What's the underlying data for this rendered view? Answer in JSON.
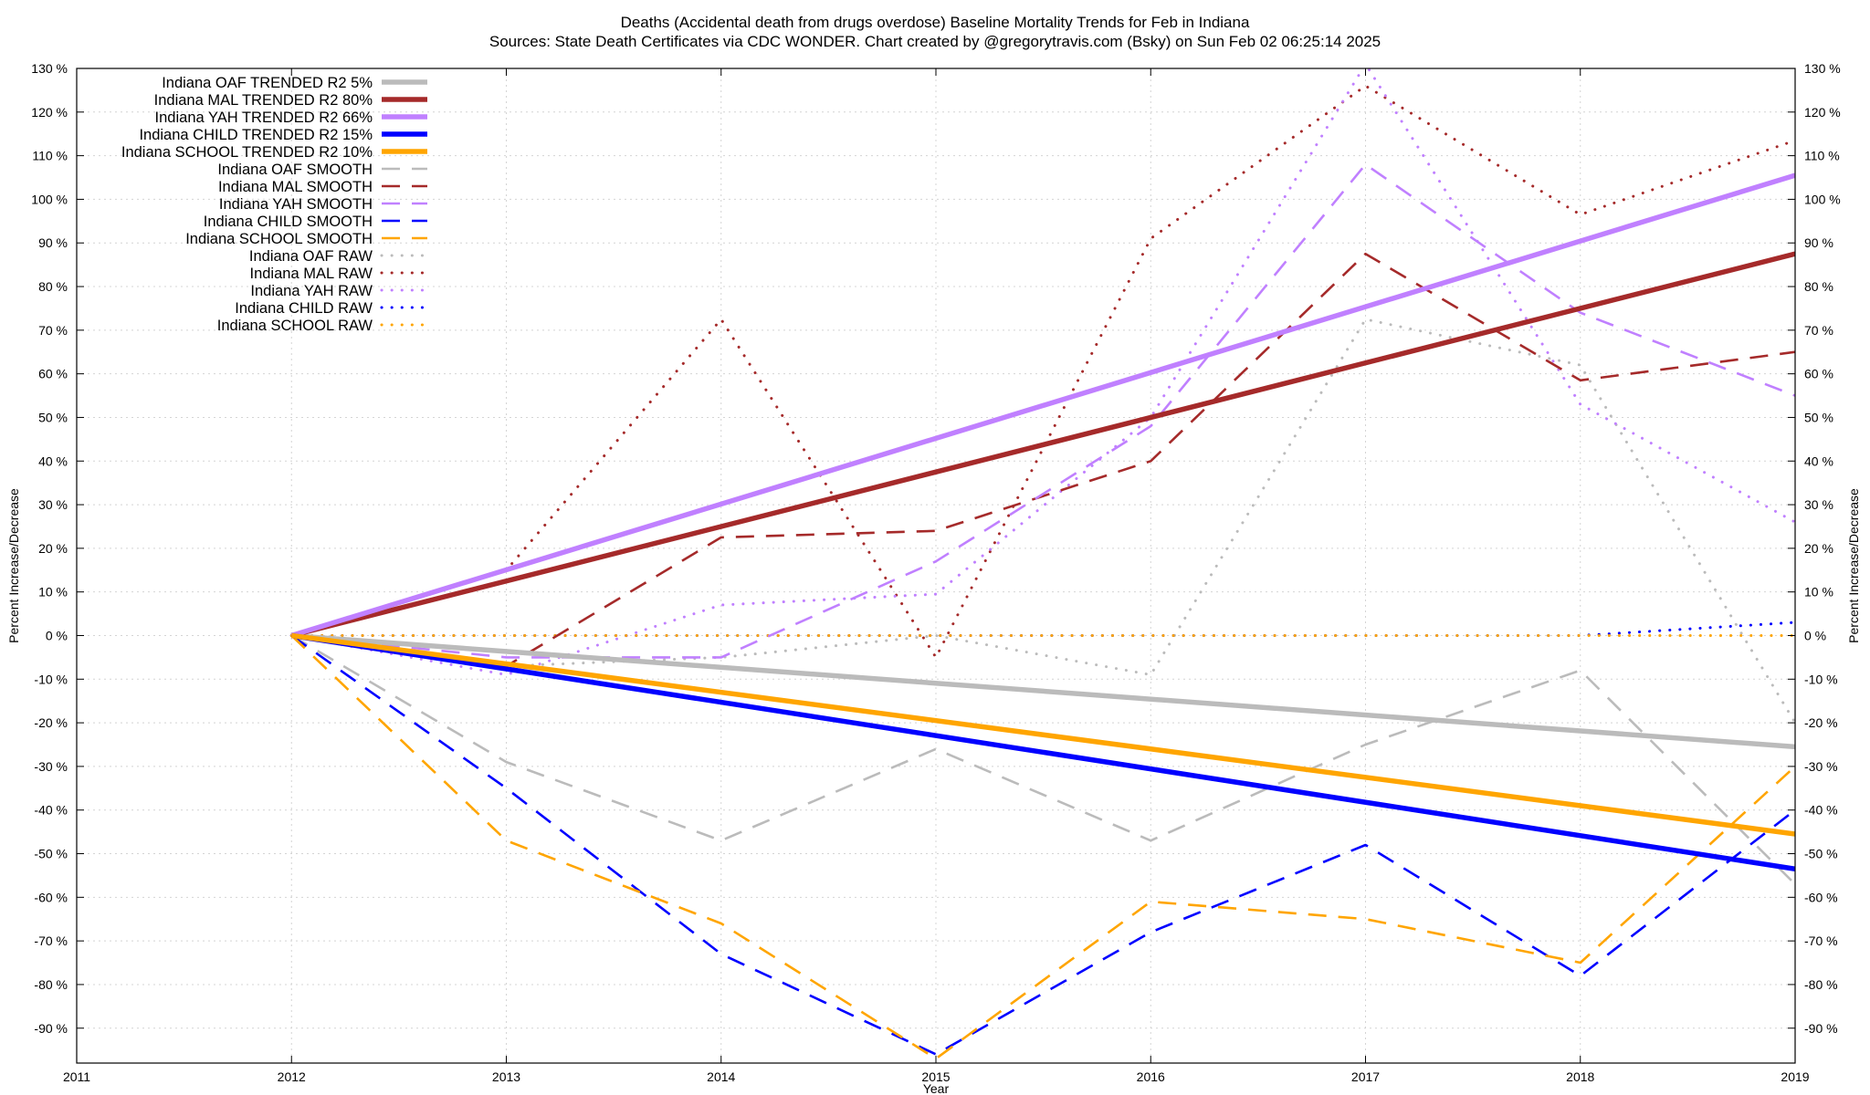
{
  "chart_data": {
    "type": "line",
    "title_line1": "Deaths (Accidental death from drugs overdose)  Baseline Mortality Trends for Feb in Indiana",
    "title_line2": "Sources: State Death Certificates via CDC WONDER.              Chart created by @gregorytravis.com (Bsky) on Sun Feb 02 06:25:14 2025",
    "xlabel": "Year",
    "ylabel_left": "Percent Increase/Decrease",
    "ylabel_right": "Percent Increase/Decrease",
    "xlim": [
      2011,
      2019
    ],
    "ylim": [
      -98,
      130
    ],
    "x_ticks": [
      2011,
      2012,
      2013,
      2014,
      2015,
      2016,
      2017,
      2018,
      2019
    ],
    "x_tick_labels": [
      "2011",
      "2012",
      "2013",
      "2014",
      "2015",
      "2016",
      "2017",
      "2018",
      "2019"
    ],
    "y_ticks": [
      130,
      120,
      110,
      100,
      90,
      80,
      70,
      60,
      50,
      40,
      30,
      20,
      10,
      0,
      -10,
      -20,
      -30,
      -40,
      -50,
      -60,
      -70,
      -80,
      -90
    ],
    "y_tick_labels": [
      "130 %",
      "120 %",
      "110 %",
      "100 %",
      "90 %",
      "80 %",
      "70 %",
      "60 %",
      "50 %",
      "40 %",
      "30 %",
      "20 %",
      "10 %",
      "0 %",
      "-10 %",
      "-20 %",
      "-30 %",
      "-40 %",
      "-50 %",
      "-60 %",
      "-70 %",
      "-80 %",
      "-90 %"
    ],
    "grid": true,
    "legend_position": "top-left",
    "series": [
      {
        "name": "Indiana OAF TRENDED R2  5%",
        "style": "solid",
        "color": "#bbbbbb",
        "x": [
          2012,
          2019
        ],
        "y": [
          0,
          -25.5
        ]
      },
      {
        "name": "Indiana MAL TRENDED R2  80%",
        "style": "solid",
        "color": "#a52a2a",
        "x": [
          2012,
          2019
        ],
        "y": [
          0,
          87.5
        ]
      },
      {
        "name": "Indiana YAH TRENDED R2  66%",
        "style": "solid",
        "color": "#c080ff",
        "x": [
          2012,
          2019
        ],
        "y": [
          0,
          105.5
        ]
      },
      {
        "name": "Indiana CHILD TRENDED R2  15%",
        "style": "solid",
        "color": "#0000ff",
        "x": [
          2012,
          2019
        ],
        "y": [
          0,
          -53.5
        ]
      },
      {
        "name": "Indiana SCHOOL TRENDED R2  10%",
        "style": "solid",
        "color": "#ffa500",
        "x": [
          2012,
          2019
        ],
        "y": [
          0,
          -45.5
        ]
      },
      {
        "name": "Indiana OAF SMOOTH",
        "style": "dashed",
        "color": "#bbbbbb",
        "x": [
          2012,
          2013,
          2014,
          2015,
          2016,
          2017,
          2018,
          2019
        ],
        "y": [
          0,
          -29,
          -47,
          -26,
          -47,
          -25,
          -8,
          -57
        ]
      },
      {
        "name": "Indiana MAL SMOOTH",
        "style": "dashed",
        "color": "#a52a2a",
        "x": [
          2012,
          2013,
          2014,
          2015,
          2016,
          2017,
          2018,
          2019
        ],
        "y": [
          0,
          -7,
          22.5,
          24,
          40,
          87.5,
          58.5,
          65
        ]
      },
      {
        "name": "Indiana YAH SMOOTH",
        "style": "dashed",
        "color": "#c080ff",
        "x": [
          2012,
          2013,
          2014,
          2015,
          2016,
          2017,
          2018,
          2019
        ],
        "y": [
          0,
          -5,
          -5,
          17,
          48,
          108,
          74,
          55
        ]
      },
      {
        "name": "Indiana CHILD SMOOTH",
        "style": "dashed",
        "color": "#0000ff",
        "x": [
          2012,
          2013,
          2014,
          2015,
          2016,
          2017,
          2018,
          2019
        ],
        "y": [
          0,
          -35,
          -73,
          -96,
          -68,
          -48,
          -78,
          -40
        ]
      },
      {
        "name": "Indiana SCHOOL SMOOTH",
        "style": "dashed",
        "color": "#ffa500",
        "x": [
          2012,
          2013,
          2014,
          2015,
          2016,
          2017,
          2018,
          2019
        ],
        "y": [
          0,
          -47,
          -66,
          -97,
          -61,
          -65,
          -75,
          -30
        ]
      },
      {
        "name": "Indiana OAF RAW",
        "style": "dotted",
        "color": "#bbbbbb",
        "x": [
          2012,
          2013,
          2014,
          2015,
          2016,
          2017,
          2018,
          2019
        ],
        "y": [
          0,
          -7,
          -5,
          0,
          -9,
          72.5,
          62,
          -20
        ]
      },
      {
        "name": "Indiana MAL RAW",
        "style": "dotted",
        "color": "#a52a2a",
        "x": [
          2012,
          2013,
          2014,
          2015,
          2016,
          2017,
          2018,
          2019
        ],
        "y": [
          0,
          15,
          72.5,
          -5,
          91,
          126,
          96.5,
          113.5
        ]
      },
      {
        "name": "Indiana YAH RAW",
        "style": "dotted",
        "color": "#c080ff",
        "x": [
          2012,
          2013,
          2014,
          2015,
          2016,
          2017,
          2018,
          2019
        ],
        "y": [
          0,
          -9,
          7,
          9.5,
          50,
          131,
          53,
          26
        ]
      },
      {
        "name": "Indiana CHILD RAW",
        "style": "dotted",
        "color": "#0000ff",
        "x": [
          2012,
          2013,
          2014,
          2015,
          2016,
          2017,
          2018,
          2019
        ],
        "y": [
          0,
          0,
          0,
          0,
          0,
          0,
          0,
          3
        ]
      },
      {
        "name": "Indiana SCHOOL RAW",
        "style": "dotted",
        "color": "#ffa500",
        "x": [
          2012,
          2013,
          2014,
          2015,
          2016,
          2017,
          2018,
          2019
        ],
        "y": [
          0,
          0,
          0,
          0,
          0,
          0,
          0,
          0
        ]
      }
    ]
  }
}
